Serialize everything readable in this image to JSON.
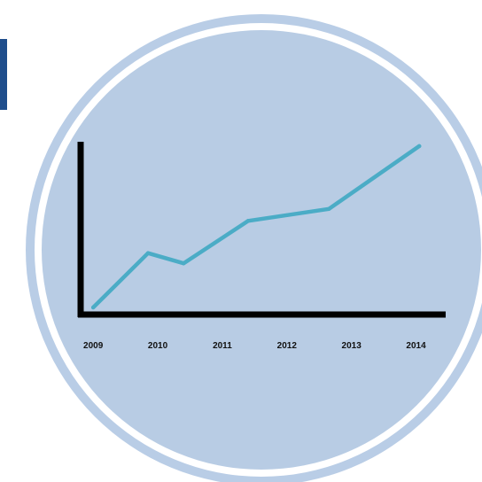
{
  "colors": {
    "outer_ring": "#b9cde6",
    "inner_disc": "#b8cce4",
    "white_gap": "#ffffff",
    "axis": "#000000",
    "line": "#4bacc6",
    "left_bar": "#1f4e8c"
  },
  "chart_data": {
    "type": "line",
    "title": "",
    "xlabel": "",
    "ylabel": "",
    "categories": [
      "2009",
      "2010",
      "2011",
      "2012",
      "2013",
      "2014"
    ],
    "x": [
      2009.0,
      2009.85,
      2010.4,
      2011.4,
      2012.65,
      2014.05
    ],
    "series": [
      {
        "values": [
          0.0,
          0.32,
          0.26,
          0.51,
          0.58,
          0.95
        ]
      }
    ],
    "xlim": [
      2008.6,
      2014.5
    ],
    "ylim": [
      0,
      1.08
    ],
    "grid": false,
    "legend": "none"
  }
}
